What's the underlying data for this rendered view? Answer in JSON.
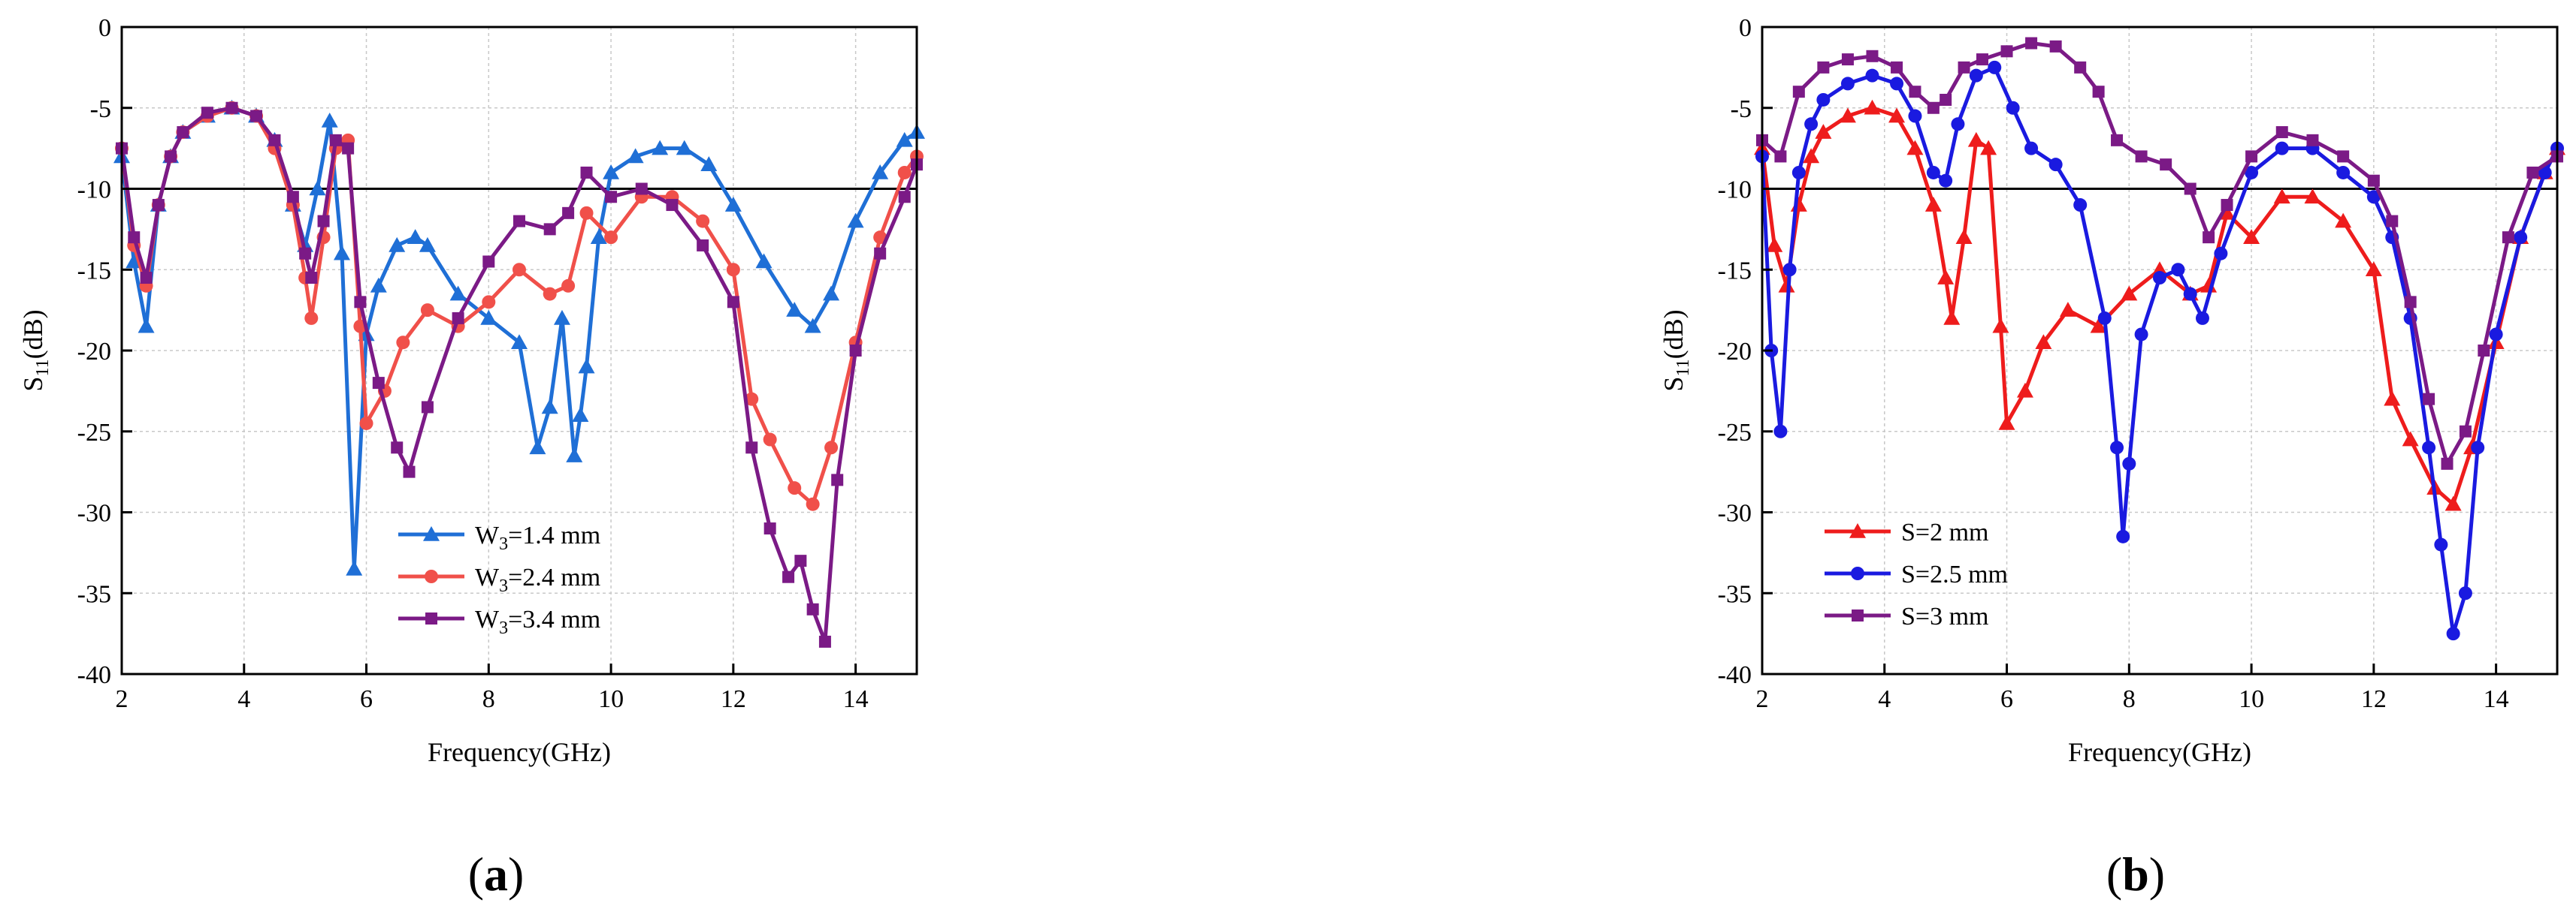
{
  "chart_data": [
    {
      "type": "line",
      "panel_label": "a",
      "xlabel": "Frequency(GHz)",
      "ylabel": "S11(dB)",
      "xlim": [
        2,
        15
      ],
      "ylim": [
        -40,
        0
      ],
      "xticks": [
        2,
        4,
        6,
        8,
        10,
        12,
        14
      ],
      "yticks": [
        0,
        -5,
        -10,
        -15,
        -20,
        -25,
        -30,
        -35,
        -40
      ],
      "grid": true,
      "reference_line": -10,
      "legend_position": "bottom-center",
      "series": [
        {
          "name": "W3=1.4 mm",
          "name_main": "W",
          "name_sub": "3",
          "name_rest": "=1.4 mm",
          "color": "#1f6fd6",
          "marker": "triangle",
          "x": [
            2.0,
            2.2,
            2.4,
            2.6,
            2.8,
            3.0,
            3.4,
            3.8,
            4.2,
            4.5,
            4.8,
            5.0,
            5.2,
            5.4,
            5.6,
            5.8,
            6.0,
            6.2,
            6.5,
            6.8,
            7.0,
            7.5,
            8.0,
            8.5,
            8.8,
            9.0,
            9.2,
            9.4,
            9.5,
            9.6,
            9.8,
            10.0,
            10.4,
            10.8,
            11.2,
            11.6,
            12.0,
            12.5,
            13.0,
            13.3,
            13.6,
            14.0,
            14.4,
            14.8,
            15.0
          ],
          "y": [
            -8,
            -14.5,
            -18.5,
            -11,
            -8,
            -6.5,
            -5.5,
            -5,
            -5.5,
            -7,
            -11,
            -13.5,
            -10,
            -5.8,
            -14,
            -33.5,
            -19,
            -16,
            -13.5,
            -13,
            -13.5,
            -16.5,
            -18,
            -19.5,
            -26,
            -23.5,
            -18,
            -26.5,
            -24,
            -21,
            -13,
            -9,
            -8,
            -7.5,
            -7.5,
            -8.5,
            -11,
            -14.5,
            -17.5,
            -18.5,
            -16.5,
            -12,
            -9,
            -7,
            -6.5
          ]
        },
        {
          "name": "W3=2.4 mm",
          "name_main": "W",
          "name_sub": "3",
          "name_rest": "=2.4 mm",
          "color": "#f0504a",
          "marker": "circle",
          "x": [
            2.0,
            2.2,
            2.4,
            2.6,
            2.8,
            3.0,
            3.4,
            3.8,
            4.2,
            4.5,
            4.8,
            5.0,
            5.1,
            5.3,
            5.5,
            5.7,
            5.9,
            6.0,
            6.3,
            6.6,
            7.0,
            7.5,
            8.0,
            8.5,
            9.0,
            9.3,
            9.6,
            10.0,
            10.5,
            11.0,
            11.5,
            12.0,
            12.3,
            12.6,
            13.0,
            13.3,
            13.6,
            14.0,
            14.4,
            14.8,
            15.0
          ],
          "y": [
            -7.5,
            -13.5,
            -16,
            -11,
            -8,
            -6.5,
            -5.5,
            -5,
            -5.5,
            -7.5,
            -11,
            -15.5,
            -18,
            -13,
            -7.5,
            -7,
            -18.5,
            -24.5,
            -22.5,
            -19.5,
            -17.5,
            -18.5,
            -17,
            -15,
            -16.5,
            -16,
            -11.5,
            -13,
            -10.5,
            -10.5,
            -12,
            -15,
            -23,
            -25.5,
            -28.5,
            -29.5,
            -26,
            -19.5,
            -13,
            -9,
            -8
          ]
        },
        {
          "name": "W3=3.4 mm",
          "name_main": "W",
          "name_sub": "3",
          "name_rest": "=3.4 mm",
          "color": "#7b1a86",
          "marker": "square",
          "x": [
            2.0,
            2.2,
            2.4,
            2.6,
            2.8,
            3.0,
            3.4,
            3.8,
            4.2,
            4.5,
            4.8,
            5.0,
            5.1,
            5.3,
            5.5,
            5.7,
            5.9,
            6.2,
            6.5,
            6.7,
            7.0,
            7.5,
            8.0,
            8.5,
            9.0,
            9.3,
            9.6,
            10.0,
            10.5,
            11.0,
            11.5,
            12.0,
            12.3,
            12.6,
            12.9,
            13.1,
            13.3,
            13.5,
            13.7,
            14.0,
            14.4,
            14.8,
            15.0
          ],
          "y": [
            -7.5,
            -13,
            -15.5,
            -11,
            -8,
            -6.5,
            -5.3,
            -5,
            -5.5,
            -7,
            -10.5,
            -14,
            -15.5,
            -12,
            -7,
            -7.5,
            -17,
            -22,
            -26,
            -27.5,
            -23.5,
            -18,
            -14.5,
            -12,
            -12.5,
            -11.5,
            -9,
            -10.5,
            -10,
            -11,
            -13.5,
            -17,
            -26,
            -31,
            -34,
            -33,
            -36,
            -38,
            -28,
            -20,
            -14,
            -10.5,
            -8.5
          ]
        }
      ]
    },
    {
      "type": "line",
      "panel_label": "b",
      "xlabel": "Frequency(GHz)",
      "ylabel": "S11(dB)",
      "xlim": [
        2,
        15
      ],
      "ylim": [
        -40,
        0
      ],
      "xticks": [
        2,
        4,
        6,
        8,
        10,
        12,
        14
      ],
      "yticks": [
        0,
        -5,
        -10,
        -15,
        -20,
        -25,
        -30,
        -35,
        -40
      ],
      "grid": true,
      "reference_line": -10,
      "legend_position": "bottom-left",
      "series": [
        {
          "name": "S=2 mm",
          "color": "#ee1c1c",
          "marker": "triangle",
          "x": [
            2.0,
            2.2,
            2.4,
            2.6,
            2.8,
            3.0,
            3.4,
            3.8,
            4.2,
            4.5,
            4.8,
            5.0,
            5.1,
            5.3,
            5.5,
            5.7,
            5.9,
            6.0,
            6.3,
            6.6,
            7.0,
            7.5,
            8.0,
            8.5,
            9.0,
            9.3,
            9.6,
            10.0,
            10.5,
            11.0,
            11.5,
            12.0,
            12.3,
            12.6,
            13.0,
            13.3,
            13.6,
            14.0,
            14.4,
            14.8,
            15.0
          ],
          "y": [
            -7.5,
            -13.5,
            -16,
            -11,
            -8,
            -6.5,
            -5.5,
            -5,
            -5.5,
            -7.5,
            -11,
            -15.5,
            -18,
            -13,
            -7,
            -7.5,
            -18.5,
            -24.5,
            -22.5,
            -19.5,
            -17.5,
            -18.5,
            -16.5,
            -15,
            -16.5,
            -16,
            -11.5,
            -13,
            -10.5,
            -10.5,
            -12,
            -15,
            -23,
            -25.5,
            -28.5,
            -29.5,
            -26,
            -19.5,
            -13,
            -9,
            -7.5
          ]
        },
        {
          "name": "S=2.5 mm",
          "color": "#1a1ae0",
          "marker": "circle",
          "x": [
            2.0,
            2.15,
            2.3,
            2.45,
            2.6,
            2.8,
            3.0,
            3.4,
            3.8,
            4.2,
            4.5,
            4.8,
            5.0,
            5.2,
            5.5,
            5.8,
            6.1,
            6.4,
            6.8,
            7.2,
            7.6,
            7.8,
            7.9,
            8.0,
            8.2,
            8.5,
            8.8,
            9.0,
            9.2,
            9.5,
            10.0,
            10.5,
            11.0,
            11.5,
            12.0,
            12.3,
            12.6,
            12.9,
            13.1,
            13.3,
            13.5,
            13.7,
            14.0,
            14.4,
            14.8,
            15.0
          ],
          "y": [
            -8,
            -20,
            -25,
            -15,
            -9,
            -6,
            -4.5,
            -3.5,
            -3,
            -3.5,
            -5.5,
            -9,
            -9.5,
            -6,
            -3,
            -2.5,
            -5,
            -7.5,
            -8.5,
            -11,
            -18,
            -26,
            -31.5,
            -27,
            -19,
            -15.5,
            -15,
            -16.5,
            -18,
            -14,
            -9,
            -7.5,
            -7.5,
            -9,
            -10.5,
            -13,
            -18,
            -26,
            -32,
            -37.5,
            -35,
            -26,
            -19,
            -13,
            -9,
            -7.5
          ]
        },
        {
          "name": "S=3 mm",
          "color": "#7b1a86",
          "marker": "square",
          "x": [
            2.0,
            2.3,
            2.6,
            3.0,
            3.4,
            3.8,
            4.2,
            4.5,
            4.8,
            5.0,
            5.3,
            5.6,
            6.0,
            6.4,
            6.8,
            7.2,
            7.5,
            7.8,
            8.2,
            8.6,
            9.0,
            9.3,
            9.6,
            10.0,
            10.5,
            11.0,
            11.5,
            12.0,
            12.3,
            12.6,
            12.9,
            13.2,
            13.5,
            13.8,
            14.2,
            14.6,
            15.0
          ],
          "y": [
            -7,
            -8,
            -4,
            -2.5,
            -2,
            -1.8,
            -2.5,
            -4,
            -5,
            -4.5,
            -2.5,
            -2,
            -1.5,
            -1,
            -1.2,
            -2.5,
            -4,
            -7,
            -8,
            -8.5,
            -10,
            -13,
            -11,
            -8,
            -6.5,
            -7,
            -8,
            -9.5,
            -12,
            -17,
            -23,
            -27,
            -25,
            -20,
            -13,
            -9,
            -8
          ]
        }
      ]
    }
  ]
}
